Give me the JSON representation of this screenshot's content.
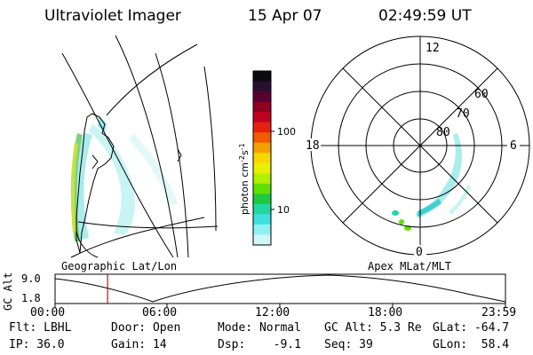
{
  "header": {
    "instrument": "Ultraviolet Imager",
    "date": "15 Apr 07",
    "time": "02:49:59 UT"
  },
  "left_panel": {
    "label": "Geographic Lat/Lon"
  },
  "colorbar": {
    "unit_label": "photon cm",
    "unit_exp1": "-2",
    "unit_s": "s",
    "unit_exp2": "-1",
    "tick_labels": [
      "100",
      "10"
    ],
    "colors": [
      "#0a0a10",
      "#2a1030",
      "#5a0030",
      "#900020",
      "#c00020",
      "#e82010",
      "#f05a00",
      "#f5a000",
      "#f5d800",
      "#e8f000",
      "#b0f000",
      "#60e000",
      "#20c840",
      "#20d8a0",
      "#40e0e0",
      "#90f0f0",
      "#d0f8f8"
    ]
  },
  "right_panel": {
    "label": "Apex MLat/MLT",
    "mlt_labels": [
      "12",
      "18",
      "6",
      "0"
    ],
    "lat_labels": [
      "60",
      "70",
      "80"
    ]
  },
  "timeline": {
    "y_label": "GC Alt",
    "y_ticks": [
      "9.0",
      "1.8"
    ],
    "x_ticks": [
      "00:00",
      "06:00",
      "12:00",
      "18:00",
      "23:59"
    ],
    "marker_time_fraction": 0.1166
  },
  "footer": {
    "flt": "Flt: LBHL",
    "ip": "IP: 36.0",
    "door": "Door: Open",
    "gain": "Gain: 14",
    "mode": "Mode: Normal",
    "dsp": "Dsp:    -9.1",
    "gcalt": "GC Alt: 5.3 Re",
    "seq": "Seq: 39",
    "glat": "GLat: -64.7",
    "glon": "GLon:  58.4"
  }
}
